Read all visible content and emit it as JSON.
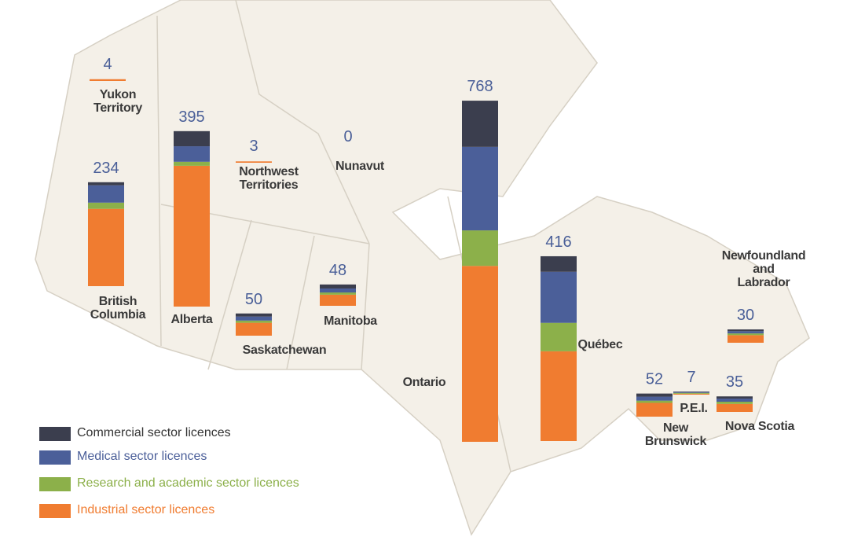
{
  "chart_data": {
    "type": "stacked-bar-map",
    "categories": [
      "Yukon\nTerritory",
      "British\nColumbia",
      "Alberta",
      "Northwest\nTerritories",
      "Nunavut",
      "Saskatchewan",
      "Manitoba",
      "Ontario",
      "Québec",
      "Newfoundland\nand\nLabrador",
      "New\nBrunswick",
      "P.E.I.",
      "Nova Scotia"
    ],
    "totals": [
      4,
      234,
      395,
      3,
      0,
      50,
      48,
      768,
      416,
      30,
      52,
      7,
      35
    ],
    "series": [
      {
        "name": "Commercial sector licences",
        "color": "#3b3e4e",
        "values": [
          0,
          7,
          34,
          0,
          0,
          7,
          9,
          104,
          35,
          4,
          7,
          1,
          5
        ]
      },
      {
        "name": "Medical sector licences",
        "color": "#4b5f99",
        "values": [
          0,
          39,
          35,
          0,
          0,
          9,
          9,
          188,
          115,
          5,
          9,
          2,
          7
        ]
      },
      {
        "name": "Research and academic sector licences",
        "color": "#8cb04a",
        "values": [
          0,
          14,
          9,
          0,
          0,
          5,
          5,
          80,
          64,
          4,
          5,
          2,
          5
        ]
      },
      {
        "name": "Industrial sector licences",
        "color": "#f07c30",
        "values": [
          4,
          174,
          317,
          3,
          0,
          29,
          25,
          396,
          202,
          17,
          31,
          2,
          18
        ]
      }
    ]
  }
}
